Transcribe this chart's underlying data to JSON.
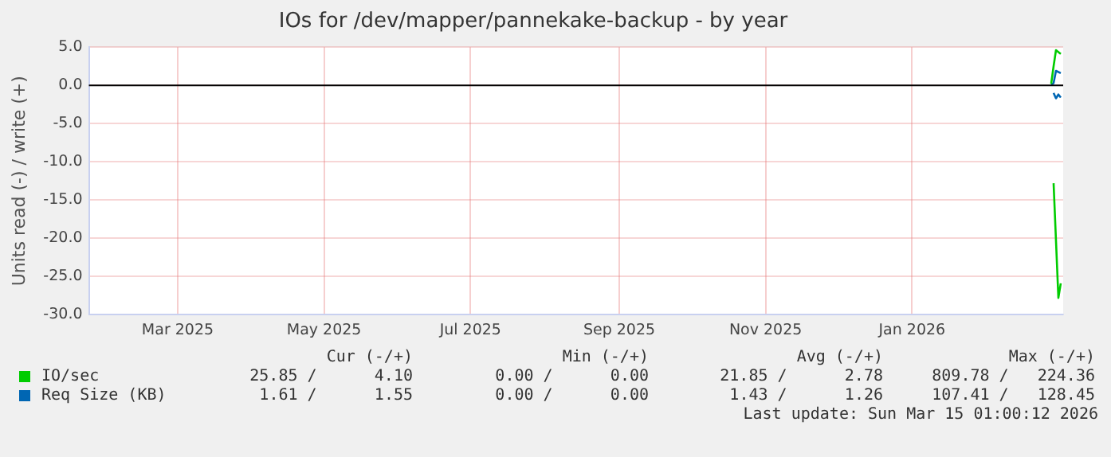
{
  "chart_data": {
    "type": "line",
    "title": "IOs for /dev/mapper/pannekake-backup - by year",
    "ylabel": "Units read (-) / write (+)",
    "xlim": [
      "2025-01-23",
      "2026-03-05"
    ],
    "xticks": [
      {
        "value": "2025-03-01",
        "label": "Mar 2025"
      },
      {
        "value": "2025-05-01",
        "label": "May 2025"
      },
      {
        "value": "2025-07-01",
        "label": "Jul 2025"
      },
      {
        "value": "2025-09-01",
        "label": "Sep 2025"
      },
      {
        "value": "2025-11-01",
        "label": "Nov 2025"
      },
      {
        "value": "2026-01-01",
        "label": "Jan 2026"
      }
    ],
    "ylim": [
      -30,
      5
    ],
    "yticks": [
      {
        "value": 5,
        "label": "5.0"
      },
      {
        "value": 0,
        "label": "0.0"
      },
      {
        "value": -5,
        "label": "-5.0"
      },
      {
        "value": -10,
        "label": "-10.0"
      },
      {
        "value": -15,
        "label": "-15.0"
      },
      {
        "value": -20,
        "label": "-20.0"
      },
      {
        "value": -25,
        "label": "-25.0"
      },
      {
        "value": -30,
        "label": "-30.0"
      }
    ],
    "series": [
      {
        "name": "IO/sec",
        "color": "#00cc00",
        "x": [
          "2026-02-28",
          "2026-03-01",
          "2026-03-02",
          "2026-03-04"
        ],
        "values": [
          0.2,
          2.5,
          4.6,
          4.1
        ]
      },
      {
        "color": "#00cc00",
        "x": [
          "2026-03-01",
          "2026-03-03",
          "2026-03-04"
        ],
        "values": [
          -12.8,
          -27.8,
          -25.9
        ]
      },
      {
        "name": "Req Size (KB)",
        "color": "#0066b3",
        "x": [
          "2026-02-28",
          "2026-03-01",
          "2026-03-02",
          "2026-03-04"
        ],
        "values": [
          0.1,
          0.3,
          1.9,
          1.6
        ]
      },
      {
        "color": "#0066b3",
        "x": [
          "2026-03-01",
          "2026-03-02",
          "2026-03-03",
          "2026-03-04"
        ],
        "values": [
          -1.0,
          -1.7,
          -1.2,
          -1.6
        ]
      }
    ],
    "ref_lines": [
      {
        "axis": "y",
        "value": 0,
        "color": "#000000"
      }
    ],
    "grid": true,
    "legend": "bottom",
    "marker": "none",
    "line_style": "solid",
    "annotations": [
      "Cur (-/+)",
      "Min (-/+)",
      "Avg (-/+)",
      "Max (-/+)",
      "25.85 /      4.10",
      "0.00 /      0.00",
      "21.85 /      2.78",
      "809.78 /   224.36",
      "1.61 /      1.55",
      "0.00 /      0.00",
      "1.43 /      1.26",
      "107.41 /   128.45",
      "Last update: Sun Mar 15 01:00:12 2026"
    ]
  }
}
